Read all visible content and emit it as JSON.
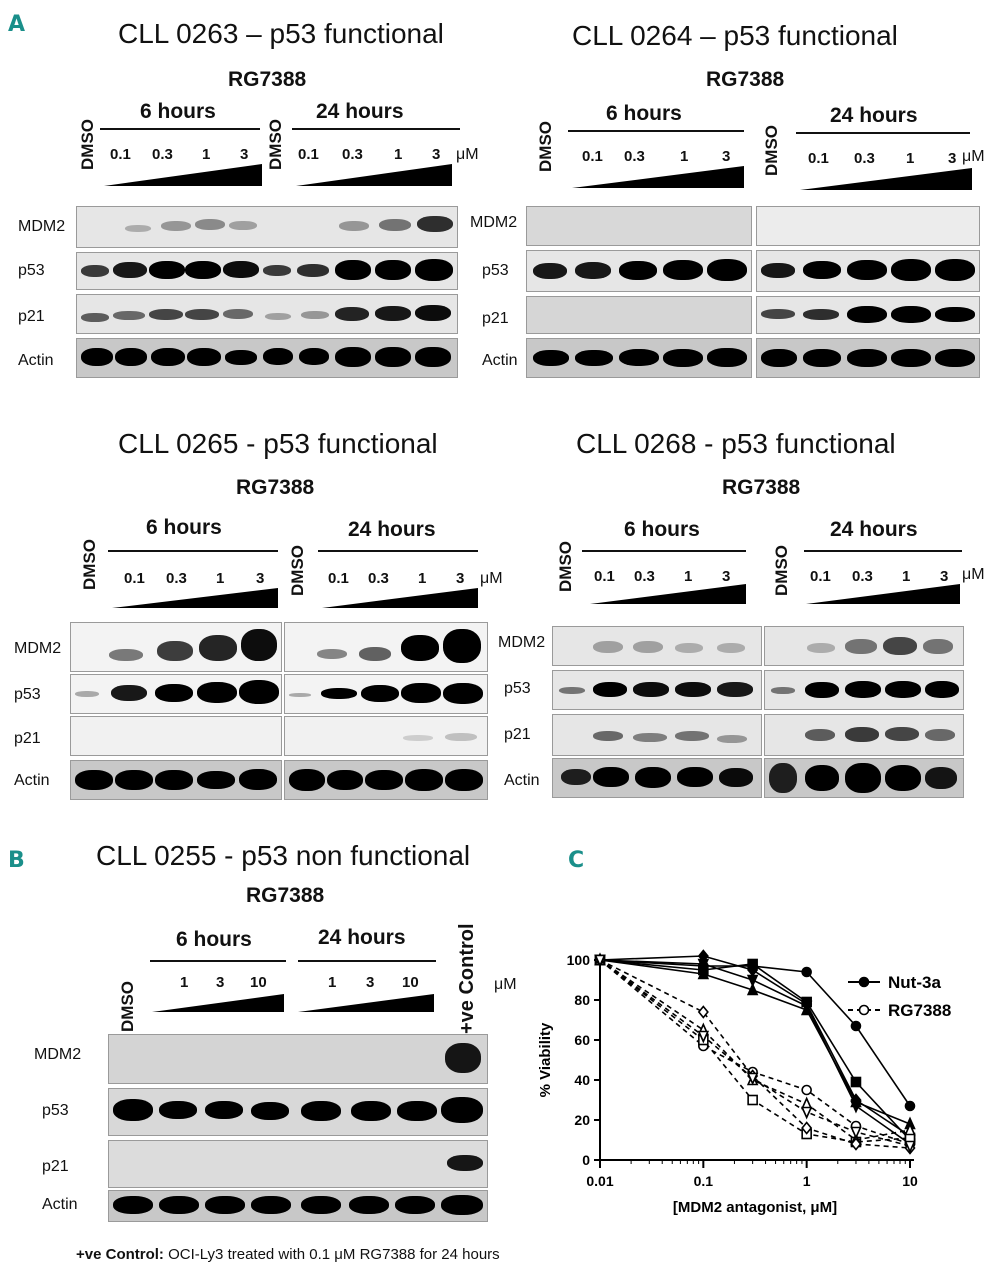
{
  "panel_letters": {
    "a": "A",
    "b": "B",
    "c": "C"
  },
  "drug": "RG7388",
  "six_hours": "6 hours",
  "twenty_four_hours": "24 hours",
  "dmso": "DMSO",
  "um": "μM",
  "conc_low": [
    "0.1",
    "0.3",
    "1",
    "3"
  ],
  "conc_high": [
    "1",
    "3",
    "10"
  ],
  "blot_labels": {
    "mdm2": "MDM2",
    "p53": "p53",
    "p21": "p21",
    "actin": "Actin"
  },
  "blots": {
    "cll0263": {
      "title": "CLL 0263 – p53 functional"
    },
    "cll0264": {
      "title": "CLL 0264 – p53 functional"
    },
    "cll0265": {
      "title": "CLL 0265 - p53 functional"
    },
    "cll0268": {
      "title": "CLL 0268 - p53 functional"
    },
    "cll0255": {
      "title": "CLL 0255 - p53 non functional",
      "positive_control": "+ve Control"
    }
  },
  "footnote": {
    "bold": "+ve Control:",
    "text": " OCI-Ly3 treated with 0.1 μM RG7388 for 24 hours"
  },
  "chart_data": {
    "type": "line",
    "xlabel": "[MDM2 antagonist, μM]",
    "ylabel": "% Viability",
    "xscale": "log",
    "xlim": [
      0.01,
      10
    ],
    "ylim": [
      0,
      100
    ],
    "xticks": [
      "0.01",
      "0.1",
      "1",
      "10"
    ],
    "yticks": [
      "0",
      "20",
      "40",
      "60",
      "80",
      "100"
    ],
    "x": [
      0.01,
      0.1,
      0.3,
      1,
      3,
      10
    ],
    "legend": {
      "position": "top-right",
      "entries": [
        "Nut-3a",
        "RG7388"
      ]
    },
    "series": [
      {
        "group": "Nut-3a",
        "marker": "circle",
        "values": [
          100,
          97,
          97,
          94,
          67,
          27
        ]
      },
      {
        "group": "Nut-3a",
        "marker": "square",
        "values": [
          100,
          95,
          98,
          79,
          39,
          10
        ]
      },
      {
        "group": "Nut-3a",
        "marker": "triangle",
        "values": [
          100,
          93,
          85,
          75,
          29,
          18
        ]
      },
      {
        "group": "Nut-3a",
        "marker": "diamond",
        "values": [
          100,
          102,
          95,
          78,
          30,
          12
        ]
      },
      {
        "group": "Nut-3a",
        "marker": "triangle-down",
        "values": [
          100,
          98,
          90,
          77,
          27,
          8
        ]
      },
      {
        "group": "RG7388",
        "marker": "circle",
        "values": [
          100,
          57,
          44,
          35,
          17,
          8
        ]
      },
      {
        "group": "RG7388",
        "marker": "square",
        "values": [
          100,
          60,
          30,
          13,
          9,
          11
        ]
      },
      {
        "group": "RG7388",
        "marker": "triangle",
        "values": [
          100,
          65,
          40,
          28,
          10,
          15
        ]
      },
      {
        "group": "RG7388",
        "marker": "diamond",
        "values": [
          100,
          74,
          42,
          16,
          8,
          6
        ]
      },
      {
        "group": "RG7388",
        "marker": "triangle-down",
        "values": [
          100,
          62,
          41,
          24,
          14,
          7
        ]
      }
    ]
  }
}
